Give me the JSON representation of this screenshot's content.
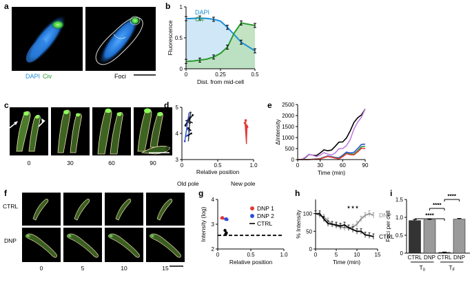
{
  "panels": {
    "a": {
      "label": "a",
      "caption_left_1": "DAPI",
      "caption_left_2": "Civ",
      "caption_right": "Foci"
    },
    "b": {
      "label": "b"
    },
    "c": {
      "label": "c",
      "times": [
        "0",
        "30",
        "60",
        "90"
      ]
    },
    "d": {
      "label": "d",
      "old_pole": "Old pole",
      "new_pole": "New pole"
    },
    "e": {
      "label": "e"
    },
    "f": {
      "label": "f",
      "rows": [
        "CTRL",
        "DNP"
      ],
      "times": [
        "0",
        "5",
        "10",
        "15"
      ]
    },
    "g": {
      "label": "g"
    },
    "h": {
      "label": "h",
      "sig": "* * *"
    },
    "i": {
      "label": "i",
      "sig": "****",
      "group_t0": "T",
      "group_t0_sub": "0",
      "group_tf": "T",
      "group_tf_sub": "F"
    }
  },
  "colors": {
    "dapi": "#1e8fd6",
    "civ": "#2a9c2a",
    "dapi_fill": "#cfe7f7",
    "civ_fill": "#b9deb9",
    "dnp1": "#e23a3a",
    "dnp2": "#2b4fd9",
    "ctrl": "#000000",
    "grey": "#8c8c8c",
    "purple": "#c07ce0"
  },
  "chart_data": [
    {
      "panel": "b",
      "type": "line",
      "title": "",
      "xlabel": "Dist. from mid-cell",
      "ylabel": "Fluorescence",
      "x": [
        0,
        0.05,
        0.1,
        0.15,
        0.2,
        0.25,
        0.3,
        0.35,
        0.4,
        0.45,
        0.5
      ],
      "series": [
        {
          "name": "DAPI",
          "values": [
            0.81,
            0.815,
            0.82,
            0.815,
            0.8,
            0.77,
            0.67,
            0.55,
            0.43,
            0.36,
            0.29
          ]
        },
        {
          "name": "Civ",
          "values": [
            0.12,
            0.125,
            0.14,
            0.155,
            0.19,
            0.25,
            0.35,
            0.58,
            0.74,
            0.72,
            0.7
          ]
        }
      ],
      "xticks": [
        "0",
        "0.25",
        "0.5"
      ],
      "yticks": [
        "0",
        "0.5",
        "1"
      ],
      "xlim": [
        0,
        0.5
      ],
      "ylim": [
        0,
        1
      ]
    },
    {
      "panel": "d",
      "type": "scatter",
      "xlabel": "Relative position",
      "ylabel": "Intensity (log)",
      "xticks": [
        "0",
        "0.5",
        "1.0"
      ],
      "yticks": [
        "3",
        "4",
        "5"
      ],
      "xlim": [
        0,
        1
      ],
      "ylim": [
        3,
        5
      ],
      "series": [
        {
          "name": "old-pole tracks",
          "x": [
            0.05,
            0.1,
            0.08,
            0.12,
            0.06,
            0.15,
            0.09,
            0.11,
            0.04,
            0.13
          ],
          "y": [
            4.3,
            4.1,
            4.5,
            4.8,
            3.9,
            4.7,
            4.2,
            4.4,
            3.7,
            4.0
          ]
        },
        {
          "name": "new-pole tracks",
          "x": [
            0.88,
            0.9,
            0.89,
            0.91
          ],
          "y": [
            4.4,
            4.3,
            4.5,
            4.25
          ]
        }
      ]
    },
    {
      "panel": "e",
      "type": "line",
      "xlabel": "Time (min)",
      "ylabel": "ΔIntensity",
      "xticks": [
        "0",
        "30",
        "60",
        "90"
      ],
      "yticks": [
        "0",
        "500",
        "1000",
        "1500",
        "2000",
        "2500"
      ],
      "xlim": [
        0,
        90
      ],
      "ylim": [
        0,
        2500
      ],
      "series": [
        {
          "name": "black",
          "x": [
            0,
            10,
            20,
            30,
            40,
            50,
            60,
            70,
            80,
            90
          ],
          "y": [
            0,
            80,
            200,
            300,
            400,
            600,
            800,
            1300,
            1900,
            2300
          ]
        },
        {
          "name": "purple",
          "x": [
            0,
            10,
            20,
            30,
            40,
            50,
            60,
            70,
            80,
            90
          ],
          "y": [
            0,
            100,
            200,
            200,
            250,
            300,
            500,
            900,
            1700,
            2300
          ]
        },
        {
          "name": "blue",
          "x": [
            0,
            30,
            50,
            60,
            70,
            80,
            90
          ],
          "y": [
            0,
            50,
            100,
            200,
            300,
            500,
            700
          ]
        },
        {
          "name": "green",
          "x": [
            0,
            30,
            50,
            60,
            70,
            80,
            90
          ],
          "y": [
            0,
            40,
            80,
            150,
            250,
            400,
            600
          ]
        },
        {
          "name": "red",
          "x": [
            0,
            30,
            50,
            60,
            70,
            80,
            90
          ],
          "y": [
            0,
            30,
            70,
            130,
            220,
            350,
            500
          ]
        }
      ]
    },
    {
      "panel": "g",
      "type": "scatter",
      "xlabel": "Relative position",
      "ylabel": "Intensity (log)",
      "xticks": [
        "0",
        "0.5",
        "1.0"
      ],
      "yticks": [
        "2",
        "3",
        "4"
      ],
      "xlim": [
        0,
        1
      ],
      "ylim": [
        2,
        4
      ],
      "legend": [
        "DNP 1",
        "DNP 2",
        "CTRL"
      ],
      "series": [
        {
          "name": "DNP 1",
          "x": [
            0.06,
            0.07,
            0.08
          ],
          "y": [
            3.25,
            3.27,
            3.24
          ]
        },
        {
          "name": "DNP 2",
          "x": [
            0.12,
            0.13,
            0.14
          ],
          "y": [
            3.2,
            3.22,
            3.19
          ]
        },
        {
          "name": "CTRL",
          "x": [
            0.11,
            0.12,
            0.13
          ],
          "y": [
            2.75,
            2.6,
            2.65
          ]
        }
      ],
      "threshold": 2.55
    },
    {
      "panel": "h",
      "type": "line",
      "xlabel": "Time (min)",
      "ylabel": "% Intensity",
      "xticks": [
        "0",
        "5",
        "10",
        "15"
      ],
      "yticks": [
        "0",
        "50",
        "100"
      ],
      "xlim": [
        0,
        15
      ],
      "ylim": [
        0,
        140
      ],
      "series": [
        {
          "name": "DNP",
          "x": [
            0,
            1,
            2,
            3,
            4,
            5,
            6,
            7,
            8,
            9,
            10,
            11,
            12,
            13,
            14
          ],
          "y": [
            100,
            95,
            90,
            80,
            70,
            65,
            62,
            60,
            60,
            62,
            70,
            85,
            95,
            100,
            95
          ]
        },
        {
          "name": "CTRL",
          "x": [
            0,
            1,
            2,
            3,
            4,
            5,
            6,
            7,
            8,
            9,
            10,
            11,
            12,
            13,
            14
          ],
          "y": [
            100,
            100,
            85,
            72,
            70,
            68,
            65,
            68,
            60,
            55,
            50,
            50,
            40,
            38,
            35
          ]
        }
      ]
    },
    {
      "panel": "i",
      "type": "bar",
      "ylabel": "Foci per cell",
      "categories": [
        "CTRL",
        "DNP",
        "CTRL",
        "DNP"
      ],
      "values": [
        0.91,
        0.93,
        0.02,
        0.95
      ],
      "errors": [
        0.03,
        0.02,
        0.01,
        0.02
      ],
      "yticks": [
        "0",
        "0.5",
        "1.0",
        "1.5"
      ],
      "ylim": [
        0,
        1.5
      ]
    }
  ]
}
